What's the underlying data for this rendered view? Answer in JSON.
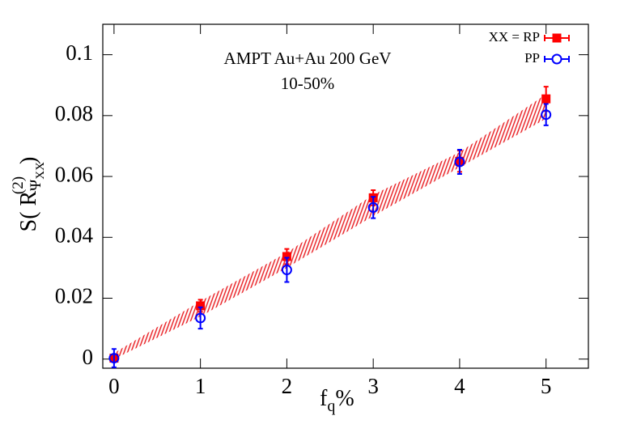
{
  "chart_data": {
    "type": "scatter",
    "annotations": [
      "AMPT Au+Au 200 GeV",
      "10-50%"
    ],
    "xlabel": [
      "f",
      "q",
      "%"
    ],
    "ylabel": [
      "S( R",
      "Ψ",
      "XX",
      "(2)",
      " )"
    ],
    "xlim": [
      -0.13,
      5.49
    ],
    "ylim": [
      -0.003,
      0.11
    ],
    "xticks": [
      0,
      1,
      2,
      3,
      4,
      5
    ],
    "yticks": [
      0,
      0.02,
      0.04,
      0.06,
      0.08,
      0.1
    ],
    "x": [
      0,
      1,
      2,
      3,
      4,
      5
    ],
    "band": {
      "color": "#e8161b",
      "lower": [
        0,
        0.014,
        0.03,
        0.047,
        0.063,
        0.079
      ],
      "upper": [
        0.002,
        0.019,
        0.035,
        0.054,
        0.068,
        0.087
      ]
    },
    "series": [
      {
        "name": "XX = RP",
        "color": "#ff0000",
        "marker": "square",
        "values": [
          0.0003,
          0.0175,
          0.0337,
          0.053,
          0.065,
          0.0855
        ],
        "errors": [
          0.001,
          0.002,
          0.0025,
          0.0025,
          0.0035,
          0.004
        ]
      },
      {
        "name": "PP",
        "color": "#0000ff",
        "marker": "circle",
        "values": [
          0.0003,
          0.0135,
          0.0293,
          0.0498,
          0.0648,
          0.0803
        ],
        "errors": [
          0.003,
          0.0035,
          0.004,
          0.0035,
          0.004,
          0.0035
        ]
      }
    ]
  }
}
